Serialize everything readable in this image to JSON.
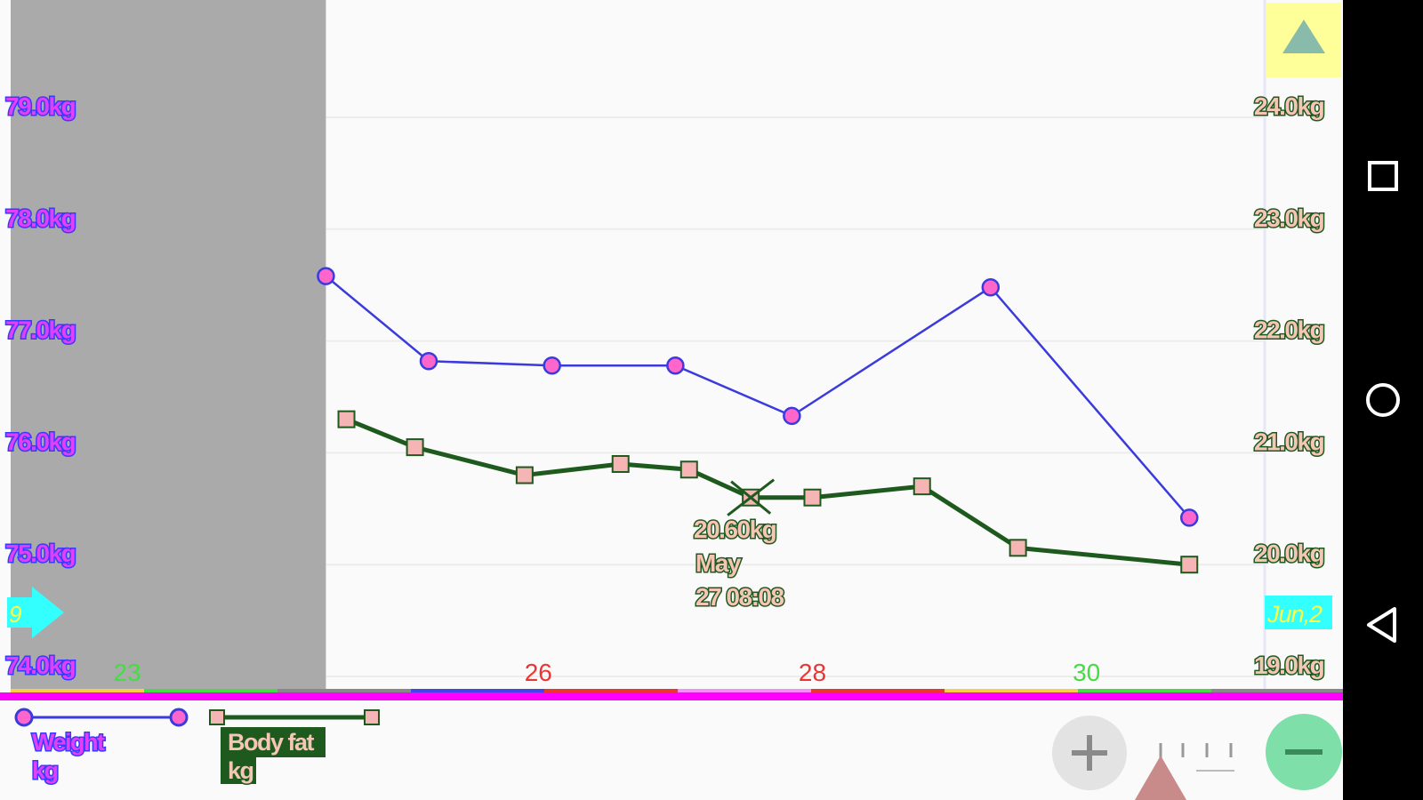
{
  "chart_data": {
    "type": "line",
    "x_tick_labels": [
      {
        "label": "23",
        "day": 23,
        "color": "#44dd44"
      },
      {
        "label": "26",
        "day": 26,
        "color": "#ee3333"
      },
      {
        "label": "28",
        "day": 28,
        "color": "#ee3333"
      },
      {
        "label": "30",
        "day": 30,
        "color": "#44dd44"
      }
    ],
    "y_left": {
      "ticks": [
        "74.0kg",
        "75.0kg",
        "76.0kg",
        "77.0kg",
        "78.0kg",
        "79.0kg"
      ],
      "range": [
        74.0,
        79.0
      ],
      "unit": "kg"
    },
    "y_right": {
      "ticks": [
        "19.0kg",
        "20.0kg",
        "21.0kg",
        "22.0kg",
        "23.0kg",
        "24.0kg"
      ],
      "range": [
        19.0,
        24.0
      ],
      "unit": "kg"
    },
    "x_range_days": [
      22.15,
      31.3
    ],
    "series": [
      {
        "name": "Weight",
        "unit": "kg",
        "axis": "left",
        "line_color": "#3b3bdd",
        "marker": "circle",
        "marker_color": "#ff66cc",
        "points": [
          {
            "x": 24.45,
            "y": 77.58
          },
          {
            "x": 25.2,
            "y": 76.82
          },
          {
            "x": 26.1,
            "y": 76.78
          },
          {
            "x": 27.0,
            "y": 76.78
          },
          {
            "x": 27.85,
            "y": 76.33
          },
          {
            "x": 29.3,
            "y": 77.48
          },
          {
            "x": 30.75,
            "y": 75.42
          }
        ]
      },
      {
        "name": "Body fat",
        "unit": "kg",
        "axis": "right",
        "line_color": "#1e5a1e",
        "marker": "square",
        "marker_color": "#f5b5b5",
        "points": [
          {
            "x": 24.6,
            "y": 21.3
          },
          {
            "x": 25.1,
            "y": 21.05
          },
          {
            "x": 25.9,
            "y": 20.8
          },
          {
            "x": 26.6,
            "y": 20.9
          },
          {
            "x": 27.1,
            "y": 20.85
          },
          {
            "x": 27.55,
            "y": 20.6
          },
          {
            "x": 28.0,
            "y": 20.6
          },
          {
            "x": 28.8,
            "y": 20.7
          },
          {
            "x": 29.5,
            "y": 20.15
          },
          {
            "x": 30.75,
            "y": 20.0
          }
        ]
      }
    ],
    "selected_point": {
      "series": "Body fat",
      "x": 27.55,
      "y": 20.6
    },
    "shaded_region_days": [
      22.15,
      24.45
    ],
    "grid": true
  },
  "tooltip": {
    "value": "20.60kg",
    "month": "May",
    "datetime": "27 08:08"
  },
  "date_markers": {
    "left": "9",
    "right": "Jun,2"
  },
  "legend": {
    "weight_name": "Weight",
    "weight_unit": "kg",
    "bodyfat_name": "Body fat",
    "bodyfat_unit": "kg"
  },
  "controls": {
    "zoom_in_icon": "plus-icon",
    "zoom_out_icon": "minus-icon",
    "scroll_up_icon": "triangle-up-icon",
    "position_indicator_icon": "triangle-up-icon",
    "colors": {
      "accent": "#ff00ff",
      "zoom_out": "#7ee0a8",
      "scroll_up_bg": "#ffff99"
    }
  },
  "navigation_bar": {
    "recents_icon": "square-icon",
    "home_icon": "circle-icon",
    "back_icon": "triangle-left-icon"
  }
}
